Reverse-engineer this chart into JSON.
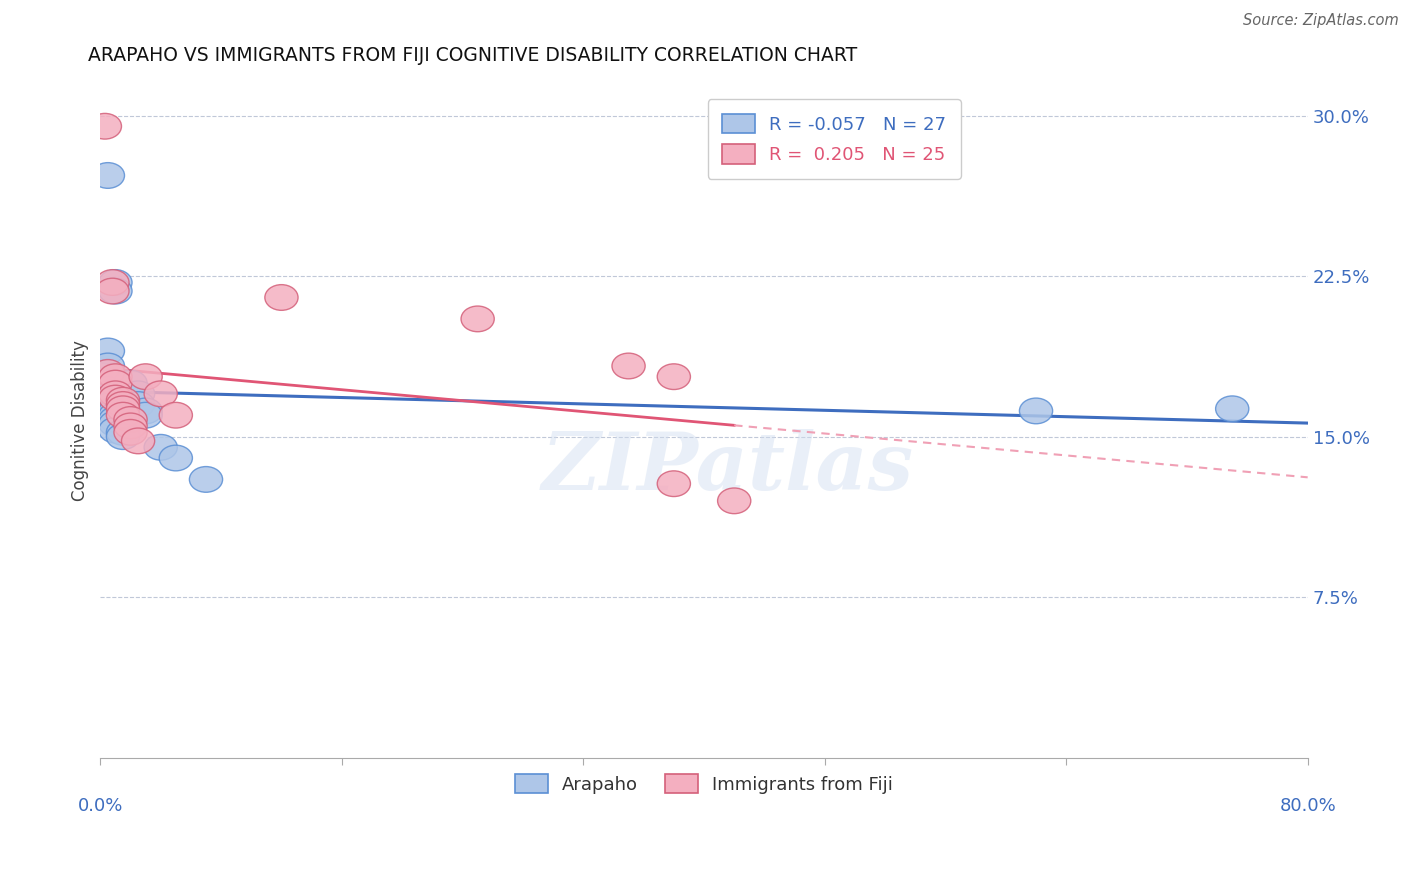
{
  "title": "ARAPAHO VS IMMIGRANTS FROM FIJI COGNITIVE DISABILITY CORRELATION CHART",
  "source": "Source: ZipAtlas.com",
  "ylabel": "Cognitive Disability",
  "yticks": [
    0.0,
    0.075,
    0.15,
    0.225,
    0.3
  ],
  "ytick_labels": [
    "",
    "7.5%",
    "15.0%",
    "22.5%",
    "30.0%"
  ],
  "xmin": 0.0,
  "xmax": 0.8,
  "ymin": 0.0,
  "ymax": 0.315,
  "blue_color": "#aec6e8",
  "pink_color": "#f4afc0",
  "blue_edge_color": "#5b8fd4",
  "pink_edge_color": "#d4607a",
  "blue_line_color": "#3e6dbf",
  "pink_line_color": "#e05575",
  "pink_dash_color": "#f0a0b5",
  "watermark": "ZIPatlas",
  "blue_points": [
    [
      0.005,
      0.272
    ],
    [
      0.01,
      0.222
    ],
    [
      0.01,
      0.218
    ],
    [
      0.005,
      0.19
    ],
    [
      0.005,
      0.183
    ],
    [
      0.005,
      0.175
    ],
    [
      0.005,
      0.172
    ],
    [
      0.005,
      0.17
    ],
    [
      0.008,
      0.168
    ],
    [
      0.008,
      0.165
    ],
    [
      0.01,
      0.163
    ],
    [
      0.01,
      0.162
    ],
    [
      0.01,
      0.16
    ],
    [
      0.01,
      0.158
    ],
    [
      0.01,
      0.156
    ],
    [
      0.01,
      0.153
    ],
    [
      0.015,
      0.152
    ],
    [
      0.015,
      0.15
    ],
    [
      0.02,
      0.175
    ],
    [
      0.025,
      0.17
    ],
    [
      0.025,
      0.165
    ],
    [
      0.03,
      0.162
    ],
    [
      0.03,
      0.16
    ],
    [
      0.04,
      0.145
    ],
    [
      0.05,
      0.14
    ],
    [
      0.07,
      0.13
    ],
    [
      0.62,
      0.162
    ],
    [
      0.75,
      0.163
    ]
  ],
  "pink_points": [
    [
      0.003,
      0.295
    ],
    [
      0.008,
      0.222
    ],
    [
      0.008,
      0.218
    ],
    [
      0.005,
      0.18
    ],
    [
      0.01,
      0.178
    ],
    [
      0.01,
      0.175
    ],
    [
      0.01,
      0.17
    ],
    [
      0.01,
      0.168
    ],
    [
      0.015,
      0.167
    ],
    [
      0.015,
      0.165
    ],
    [
      0.015,
      0.163
    ],
    [
      0.015,
      0.16
    ],
    [
      0.02,
      0.158
    ],
    [
      0.02,
      0.155
    ],
    [
      0.02,
      0.152
    ],
    [
      0.025,
      0.148
    ],
    [
      0.03,
      0.178
    ],
    [
      0.04,
      0.17
    ],
    [
      0.05,
      0.16
    ],
    [
      0.12,
      0.215
    ],
    [
      0.25,
      0.205
    ],
    [
      0.35,
      0.183
    ],
    [
      0.38,
      0.178
    ],
    [
      0.38,
      0.128
    ],
    [
      0.42,
      0.12
    ]
  ]
}
